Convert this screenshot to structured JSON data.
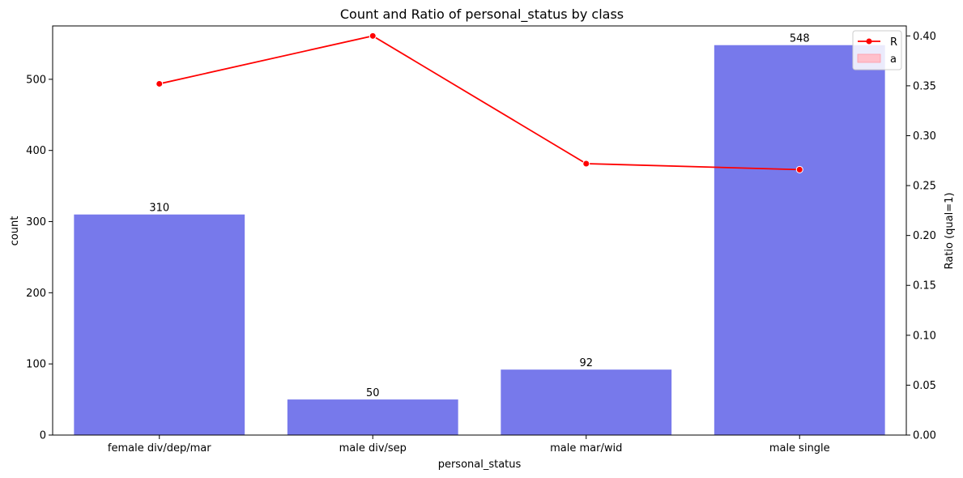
{
  "chart_data": {
    "type": "bar",
    "title": "Count and Ratio of personal_status by class",
    "xlabel": "personal_status",
    "ylabel": "count",
    "ylabel_right": "Ratio (qual=1)",
    "categories": [
      "female div/dep/mar",
      "male div/sep",
      "male mar/wid",
      "male single"
    ],
    "series": [
      {
        "name": "",
        "type": "bar",
        "axis": "left",
        "color": "#7779eb",
        "values": [
          310,
          50,
          92,
          548
        ]
      },
      {
        "name": "R",
        "type": "line",
        "axis": "right",
        "color": "#ff0000",
        "values": [
          0.352,
          0.4,
          0.272,
          0.266
        ]
      }
    ],
    "legend_entries": [
      {
        "label": "R",
        "kind": "line-marker",
        "color": "#ff0000"
      },
      {
        "label": "a",
        "kind": "patch",
        "color": "#ffc0cb"
      }
    ],
    "ylim": [
      0,
      575
    ],
    "ylim_right": [
      0,
      0.41
    ],
    "yticks": [
      "0",
      "100",
      "200",
      "300",
      "400",
      "500"
    ],
    "yticks_right": [
      "0.00",
      "0.05",
      "0.10",
      "0.15",
      "0.20",
      "0.25",
      "0.30",
      "0.35",
      "0.40"
    ],
    "legend_position": "top-right",
    "grid": false
  }
}
